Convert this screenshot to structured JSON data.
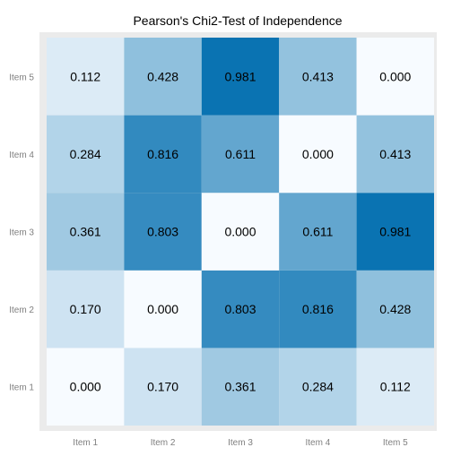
{
  "chart_data": {
    "type": "heatmap",
    "title": "Pearson's Chi2-Test of Independence",
    "x_categories": [
      "Item 1",
      "Item 2",
      "Item 3",
      "Item 4",
      "Item 5"
    ],
    "y_categories": [
      "Item 1",
      "Item 2",
      "Item 3",
      "Item 4",
      "Item 5"
    ],
    "values": [
      [
        0.0,
        0.17,
        0.361,
        0.284,
        0.112
      ],
      [
        0.17,
        0.0,
        0.803,
        0.816,
        0.428
      ],
      [
        0.361,
        0.803,
        0.0,
        0.611,
        0.981
      ],
      [
        0.284,
        0.816,
        0.611,
        0.0,
        0.413
      ],
      [
        0.112,
        0.428,
        0.981,
        0.413,
        0.0
      ]
    ],
    "labels": [
      [
        "0.000",
        "0.170",
        "0.361",
        "0.284",
        "0.112"
      ],
      [
        "0.170",
        "0.000",
        "0.803",
        "0.816",
        "0.428"
      ],
      [
        "0.361",
        "0.803",
        "0.000",
        "0.611",
        "0.981"
      ],
      [
        "0.284",
        "0.816",
        "0.611",
        "0.000",
        "0.413"
      ],
      [
        "0.112",
        "0.428",
        "0.981",
        "0.413",
        "0.000"
      ]
    ],
    "color_scale": {
      "low": "#f7fbff",
      "high": "#0570b0",
      "range": [
        0,
        1
      ]
    },
    "panel_background": "#ebebeb",
    "legend": "none"
  }
}
